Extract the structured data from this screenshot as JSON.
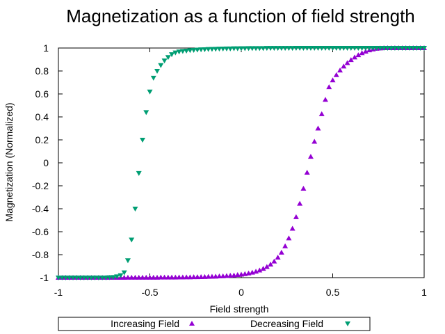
{
  "chart_data": {
    "type": "scatter",
    "title": "Magnetization as a function of field strength",
    "xlabel": "Field strength",
    "ylabel": "Magnetization (Normalized)",
    "xlim": [
      -1,
      1
    ],
    "ylim": [
      -1,
      1
    ],
    "xticks": [
      -1,
      -0.5,
      0,
      0.5,
      1
    ],
    "xtick_labels": [
      "-1",
      "-0.5",
      "0",
      "0.5",
      "1"
    ],
    "yticks": [
      -1,
      -0.8,
      -0.6,
      -0.4,
      -0.2,
      0,
      0.2,
      0.4,
      0.6,
      0.8,
      1
    ],
    "ytick_labels": [
      "-1",
      "-0.8",
      "-0.6",
      "-0.4",
      "-0.2",
      "0",
      "0.2",
      "0.4",
      "0.6",
      "0.8",
      "1"
    ],
    "grid": false,
    "legend_position": "bottom",
    "series": [
      {
        "name": "Increasing Field",
        "marker": "triangle-up",
        "color": "#9400d3",
        "x": [
          -1.0,
          -0.98,
          -0.96,
          -0.94,
          -0.92,
          -0.9,
          -0.88,
          -0.86,
          -0.84,
          -0.82,
          -0.8,
          -0.78,
          -0.76,
          -0.74,
          -0.72,
          -0.7,
          -0.68,
          -0.66,
          -0.64,
          -0.62,
          -0.6,
          -0.58,
          -0.56,
          -0.54,
          -0.52,
          -0.5,
          -0.48,
          -0.46,
          -0.44,
          -0.42,
          -0.4,
          -0.38,
          -0.36,
          -0.34,
          -0.32,
          -0.3,
          -0.28,
          -0.26,
          -0.24,
          -0.22,
          -0.2,
          -0.18,
          -0.16,
          -0.14,
          -0.12,
          -0.1,
          -0.08,
          -0.06,
          -0.04,
          -0.02,
          0.0,
          0.02,
          0.04,
          0.06,
          0.08,
          0.1,
          0.12,
          0.14,
          0.16,
          0.18,
          0.2,
          0.22,
          0.24,
          0.26,
          0.28,
          0.3,
          0.32,
          0.34,
          0.36,
          0.38,
          0.4,
          0.42,
          0.44,
          0.46,
          0.48,
          0.5,
          0.52,
          0.54,
          0.56,
          0.58,
          0.6,
          0.62,
          0.64,
          0.66,
          0.68,
          0.7,
          0.72,
          0.74,
          0.76,
          0.78,
          0.8,
          0.82,
          0.84,
          0.86,
          0.88,
          0.9,
          0.92,
          0.94,
          0.96,
          0.98,
          1.0
        ],
        "y": [
          -1.0,
          -1.0,
          -1.0,
          -1.0,
          -1.0,
          -1.0,
          -1.0,
          -1.0,
          -1.0,
          -1.0,
          -1.0,
          -1.0,
          -1.0,
          -1.0,
          -1.0,
          -1.0,
          -1.0,
          -1.0,
          -1.0,
          -0.999,
          -0.999,
          -0.999,
          -0.999,
          -0.999,
          -0.999,
          -0.999,
          -0.999,
          -0.999,
          -0.998,
          -0.998,
          -0.998,
          -0.998,
          -0.998,
          -0.997,
          -0.997,
          -0.996,
          -0.996,
          -0.995,
          -0.995,
          -0.994,
          -0.993,
          -0.992,
          -0.991,
          -0.99,
          -0.988,
          -0.987,
          -0.985,
          -0.982,
          -0.98,
          -0.976,
          -0.973,
          -0.968,
          -0.962,
          -0.955,
          -0.947,
          -0.936,
          -0.922,
          -0.906,
          -0.885,
          -0.858,
          -0.824,
          -0.781,
          -0.726,
          -0.657,
          -0.573,
          -0.472,
          -0.355,
          -0.224,
          -0.085,
          0.054,
          0.185,
          0.3,
          0.425,
          0.55,
          0.66,
          0.72,
          0.765,
          0.805,
          0.84,
          0.87,
          0.896,
          0.919,
          0.939,
          0.956,
          0.97,
          0.981,
          0.989,
          0.995,
          0.998,
          1.0,
          1.0,
          1.0,
          1.0,
          1.0,
          1.0,
          1.0,
          1.0,
          1.0,
          1.0,
          1.0,
          1.0
        ]
      },
      {
        "name": "Decreasing Field",
        "marker": "triangle-down",
        "color": "#009e73",
        "x": [
          -1.0,
          -0.98,
          -0.96,
          -0.94,
          -0.92,
          -0.9,
          -0.88,
          -0.86,
          -0.84,
          -0.82,
          -0.8,
          -0.78,
          -0.76,
          -0.74,
          -0.72,
          -0.7,
          -0.68,
          -0.66,
          -0.64,
          -0.62,
          -0.6,
          -0.58,
          -0.56,
          -0.54,
          -0.52,
          -0.5,
          -0.48,
          -0.46,
          -0.44,
          -0.42,
          -0.4,
          -0.38,
          -0.36,
          -0.34,
          -0.32,
          -0.3,
          -0.28,
          -0.26,
          -0.24,
          -0.22,
          -0.2,
          -0.18,
          -0.16,
          -0.14,
          -0.12,
          -0.1,
          -0.08,
          -0.06,
          -0.04,
          -0.02,
          0.0,
          0.02,
          0.04,
          0.06,
          0.08,
          0.1,
          0.12,
          0.14,
          0.16,
          0.18,
          0.2,
          0.22,
          0.24,
          0.26,
          0.28,
          0.3,
          0.32,
          0.34,
          0.36,
          0.38,
          0.4,
          0.42,
          0.44,
          0.46,
          0.48,
          0.5,
          0.52,
          0.54,
          0.56,
          0.58,
          0.6,
          0.62,
          0.64,
          0.66,
          0.68,
          0.7,
          0.72,
          0.74,
          0.76,
          0.78,
          0.8,
          0.82,
          0.84,
          0.86,
          0.88,
          0.9,
          0.92,
          0.94,
          0.96,
          0.98,
          1.0
        ],
        "y": [
          -1.0,
          -1.0,
          -1.0,
          -1.0,
          -1.0,
          -1.0,
          -1.0,
          -1.0,
          -1.0,
          -1.0,
          -1.0,
          -1.0,
          -1.0,
          -1.0,
          -0.998,
          -0.996,
          -0.99,
          -0.98,
          -0.955,
          -0.85,
          -0.67,
          -0.4,
          -0.09,
          0.2,
          0.44,
          0.62,
          0.74,
          0.8,
          0.85,
          0.89,
          0.92,
          0.945,
          0.96,
          0.968,
          0.973,
          0.976,
          0.98,
          0.982,
          0.985,
          0.987,
          0.988,
          0.99,
          0.991,
          0.992,
          0.993,
          0.994,
          0.995,
          0.995,
          0.996,
          0.996,
          0.997,
          0.997,
          0.998,
          0.998,
          0.998,
          0.998,
          0.998,
          0.999,
          0.999,
          0.999,
          0.999,
          0.999,
          0.999,
          0.999,
          0.999,
          1.0,
          1.0,
          1.0,
          1.0,
          1.0,
          1.0,
          1.0,
          1.0,
          1.0,
          1.0,
          1.0,
          1.0,
          1.0,
          1.0,
          1.0,
          1.0,
          1.0,
          1.0,
          1.0,
          1.0,
          1.0,
          1.0,
          1.0,
          1.0,
          1.0,
          1.0,
          1.0,
          1.0,
          1.0,
          1.0,
          1.0,
          1.0,
          1.0,
          1.0,
          1.0,
          1.0
        ]
      }
    ]
  }
}
